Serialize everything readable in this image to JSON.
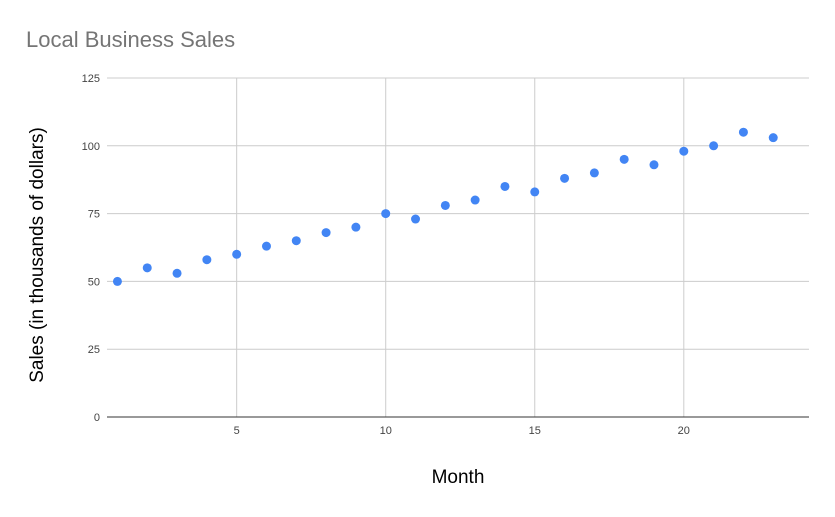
{
  "chart_data": {
    "type": "scatter",
    "title": "Local Business Sales",
    "xlabel": "Month",
    "ylabel": "Sales (in thousands of dollars)",
    "x": [
      1,
      2,
      3,
      4,
      5,
      6,
      7,
      8,
      9,
      10,
      11,
      12,
      13,
      14,
      15,
      16,
      17,
      18,
      19,
      20,
      21,
      22,
      23
    ],
    "y": [
      50,
      55,
      53,
      58,
      60,
      63,
      65,
      68,
      70,
      75,
      73,
      78,
      80,
      85,
      83,
      88,
      90,
      95,
      93,
      98,
      100,
      105,
      103
    ],
    "xlim": [
      0.65,
      24.2
    ],
    "ylim": [
      0,
      125
    ],
    "x_ticks": [
      5,
      10,
      15,
      20
    ],
    "y_ticks": [
      0,
      25,
      50,
      75,
      100,
      125
    ],
    "grid": true,
    "legend": "none",
    "colors": {
      "points": "#4285f4",
      "grid": "#cccccc",
      "axis": "#333333",
      "title": "#757575",
      "tick_labels": "#444444"
    }
  }
}
